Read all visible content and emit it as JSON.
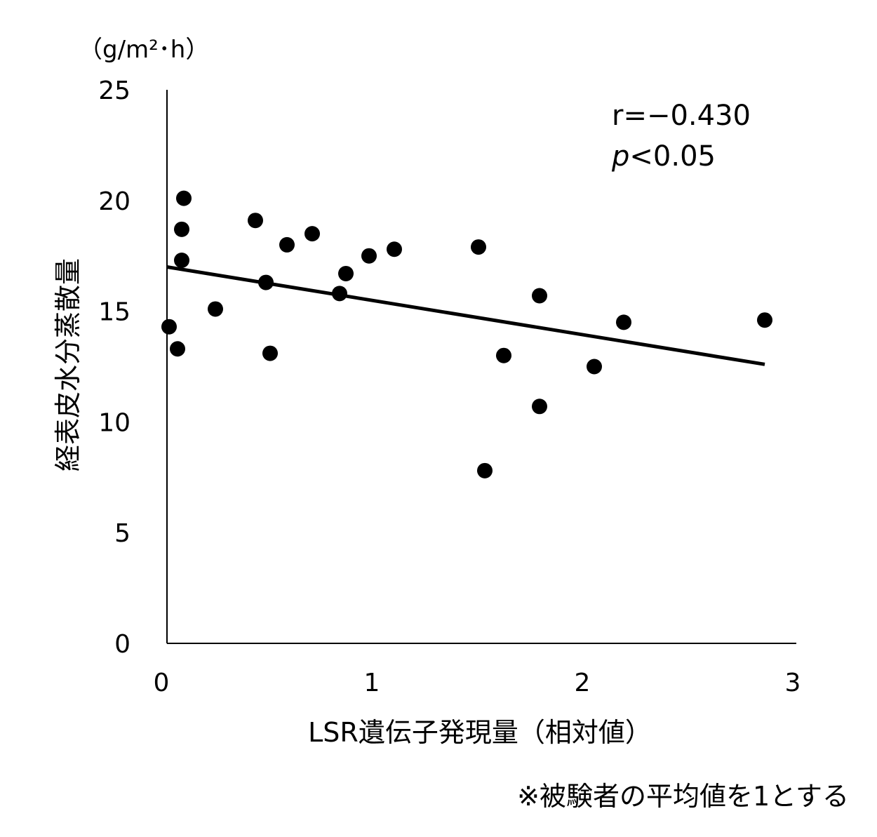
{
  "chart_data": {
    "type": "scatter",
    "y_unit": "（g/m²･h）",
    "xlabel": "LSR遺伝子発現量（相対値）",
    "ylabel": "経表皮水分蒸散量",
    "footnote": "※被験者の平均値を1とする",
    "annotation": {
      "r_text": "r=−0.430",
      "p_symbol": "p",
      "p_text": "<0.05"
    },
    "xlim": [
      0,
      3
    ],
    "ylim": [
      0,
      25
    ],
    "x_ticks": [
      0,
      1,
      2,
      3
    ],
    "y_ticks": [
      0,
      5,
      10,
      15,
      20,
      25
    ],
    "grid": false,
    "points": [
      {
        "x": 0.01,
        "y": 14.3
      },
      {
        "x": 0.05,
        "y": 13.3
      },
      {
        "x": 0.07,
        "y": 18.7
      },
      {
        "x": 0.07,
        "y": 17.3
      },
      {
        "x": 0.08,
        "y": 20.1
      },
      {
        "x": 0.23,
        "y": 15.1
      },
      {
        "x": 0.42,
        "y": 19.1
      },
      {
        "x": 0.47,
        "y": 16.3
      },
      {
        "x": 0.49,
        "y": 13.1
      },
      {
        "x": 0.57,
        "y": 18.0
      },
      {
        "x": 0.69,
        "y": 18.5
      },
      {
        "x": 0.82,
        "y": 15.8
      },
      {
        "x": 0.85,
        "y": 16.7
      },
      {
        "x": 0.96,
        "y": 17.5
      },
      {
        "x": 1.08,
        "y": 17.8
      },
      {
        "x": 1.48,
        "y": 17.9
      },
      {
        "x": 1.51,
        "y": 7.8
      },
      {
        "x": 1.6,
        "y": 13.0
      },
      {
        "x": 1.77,
        "y": 15.7
      },
      {
        "x": 1.77,
        "y": 10.7
      },
      {
        "x": 2.03,
        "y": 12.5
      },
      {
        "x": 2.17,
        "y": 14.5
      },
      {
        "x": 2.84,
        "y": 14.6
      }
    ],
    "trendline": {
      "x": [
        0.0,
        2.84
      ],
      "y": [
        17.0,
        12.6
      ]
    }
  }
}
